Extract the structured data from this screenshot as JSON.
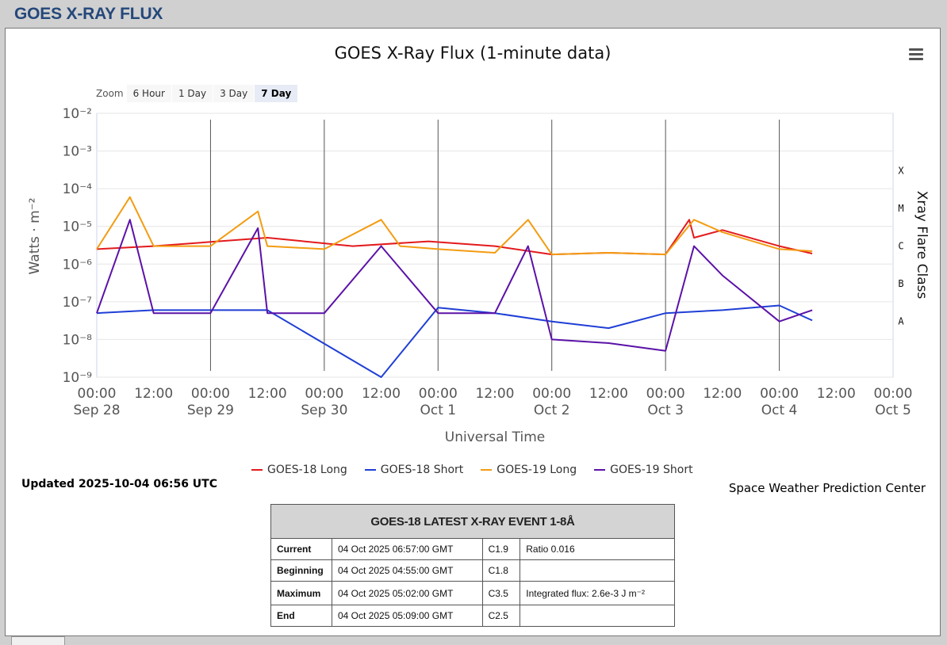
{
  "page": {
    "title": "GOES X-RAY FLUX"
  },
  "chart": {
    "title": "GOES X-Ray Flux (1-minute data)",
    "zoom_label": "Zoom",
    "zoom_buttons": [
      "6 Hour",
      "1 Day",
      "3 Day",
      "7 Day"
    ],
    "zoom_active": "7 Day",
    "updated": "Updated 2025-10-04 06:56 UTC",
    "credit": "Space Weather Prediction Center"
  },
  "chart_data": {
    "type": "line",
    "title": "GOES X-Ray Flux (1-minute data)",
    "xlabel": "Universal Time",
    "ylabel": "Watts · m⁻²",
    "y2label": "Xray Flare Class",
    "yscale": "log",
    "ylim": [
      1e-09,
      0.01
    ],
    "xlim": [
      "2025-09-28 00:00",
      "2025-10-05 00:00"
    ],
    "y_tick_labels": [
      "10⁻²",
      "10⁻³",
      "10⁻⁴",
      "10⁻⁵",
      "10⁻⁶",
      "10⁻⁷",
      "10⁻⁸",
      "10⁻⁹"
    ],
    "flare_classes": [
      {
        "label": "X",
        "value": 0.0001
      },
      {
        "label": "M",
        "value": 1e-05
      },
      {
        "label": "C",
        "value": 1e-06
      },
      {
        "label": "B",
        "value": 1e-07
      },
      {
        "label": "A",
        "value": 1e-08
      }
    ],
    "x_tick_labels": [
      {
        "time": "00:00",
        "date": "Sep 28"
      },
      {
        "time": "12:00",
        "date": ""
      },
      {
        "time": "00:00",
        "date": "Sep 29"
      },
      {
        "time": "12:00",
        "date": ""
      },
      {
        "time": "00:00",
        "date": "Sep 30"
      },
      {
        "time": "12:00",
        "date": ""
      },
      {
        "time": "00:00",
        "date": "Oct 1"
      },
      {
        "time": "12:00",
        "date": ""
      },
      {
        "time": "00:00",
        "date": "Oct 2"
      },
      {
        "time": "12:00",
        "date": ""
      },
      {
        "time": "00:00",
        "date": "Oct 3"
      },
      {
        "time": "12:00",
        "date": ""
      },
      {
        "time": "00:00",
        "date": "Oct 4"
      },
      {
        "time": "12:00",
        "date": ""
      },
      {
        "time": "00:00",
        "date": "Oct 5"
      }
    ],
    "series": [
      {
        "name": "GOES-18 Long",
        "color": "#e31a1c",
        "x": [
          "2025-09-28 00:00",
          "2025-09-28 12:00",
          "2025-09-29 12:00",
          "2025-09-30 06:00",
          "2025-09-30 22:00",
          "2025-10-01 12:00",
          "2025-10-02 00:00",
          "2025-10-02 12:00",
          "2025-10-03 00:00",
          "2025-10-03 05:00",
          "2025-10-03 06:00",
          "2025-10-03 12:00",
          "2025-10-04 00:00",
          "2025-10-04 06:57"
        ],
        "y": [
          2.5e-06,
          3e-06,
          5e-06,
          3e-06,
          4e-06,
          3e-06,
          1.8e-06,
          2e-06,
          1.8e-06,
          1.5e-05,
          5e-06,
          8e-06,
          3e-06,
          1.9e-06
        ]
      },
      {
        "name": "GOES-18 Short",
        "color": "#1f3fd6",
        "x": [
          "2025-09-28 00:00",
          "2025-09-28 12:00",
          "2025-09-29 12:00",
          "2025-09-30 12:00",
          "2025-10-01 00:00",
          "2025-10-01 12:00",
          "2025-10-02 00:00",
          "2025-10-02 12:00",
          "2025-10-03 00:00",
          "2025-10-03 12:00",
          "2025-10-04 00:00",
          "2025-10-04 06:57"
        ],
        "y": [
          5e-08,
          6e-08,
          6e-08,
          1e-09,
          7e-08,
          5e-08,
          3e-08,
          2e-08,
          5e-08,
          6e-08,
          8e-08,
          3.2e-08
        ]
      },
      {
        "name": "GOES-19 Long",
        "color": "#f39c12",
        "x": [
          "2025-09-28 00:00",
          "2025-09-28 07:00",
          "2025-09-28 12:00",
          "2025-09-29 00:00",
          "2025-09-29 10:00",
          "2025-09-29 12:00",
          "2025-09-30 00:00",
          "2025-09-30 12:00",
          "2025-09-30 16:00",
          "2025-10-01 00:00",
          "2025-10-01 12:00",
          "2025-10-01 19:00",
          "2025-10-02 00:00",
          "2025-10-02 12:00",
          "2025-10-03 00:00",
          "2025-10-03 06:00",
          "2025-10-03 12:00",
          "2025-10-04 00:00",
          "2025-10-04 06:57"
        ],
        "y": [
          2.5e-06,
          6e-05,
          3e-06,
          3e-06,
          2.5e-05,
          3e-06,
          2.5e-06,
          1.5e-05,
          3e-06,
          2.5e-06,
          2e-06,
          1.5e-05,
          1.8e-06,
          2e-06,
          1.8e-06,
          1.5e-05,
          7e-06,
          2.5e-06,
          2.2e-06
        ]
      },
      {
        "name": "GOES-19 Short",
        "color": "#5b12a8",
        "x": [
          "2025-09-28 00:00",
          "2025-09-28 07:00",
          "2025-09-28 12:00",
          "2025-09-29 00:00",
          "2025-09-29 10:00",
          "2025-09-29 12:00",
          "2025-09-30 00:00",
          "2025-09-30 12:00",
          "2025-10-01 00:00",
          "2025-10-01 12:00",
          "2025-10-01 19:00",
          "2025-10-02 00:00",
          "2025-10-02 12:00",
          "2025-10-03 00:00",
          "2025-10-03 06:00",
          "2025-10-03 12:00",
          "2025-10-04 00:00",
          "2025-10-04 06:57"
        ],
        "y": [
          5e-08,
          1.5e-05,
          5e-08,
          5e-08,
          9e-06,
          5e-08,
          5e-08,
          3e-06,
          5e-08,
          5e-08,
          3e-06,
          1e-08,
          8e-09,
          5e-09,
          3e-06,
          5e-07,
          3e-08,
          6e-08
        ]
      }
    ],
    "legend_position": "bottom-center",
    "grid": true
  },
  "event": {
    "title": "GOES-18 LATEST X-RAY EVENT 1-8Å",
    "rows": [
      {
        "label": "Current",
        "time": "04 Oct 2025 06:57:00 GMT",
        "class": "C1.9",
        "extra": "Ratio 0.016"
      },
      {
        "label": "Beginning",
        "time": "04 Oct 2025 04:55:00 GMT",
        "class": "C1.8",
        "extra": ""
      },
      {
        "label": "Maximum",
        "time": "04 Oct 2025 05:02:00 GMT",
        "class": "C3.5",
        "extra": "Integrated flux: 2.6e-3 J m⁻²"
      },
      {
        "label": "End",
        "time": "04 Oct 2025 05:09:00 GMT",
        "class": "C2.5",
        "extra": ""
      }
    ]
  }
}
